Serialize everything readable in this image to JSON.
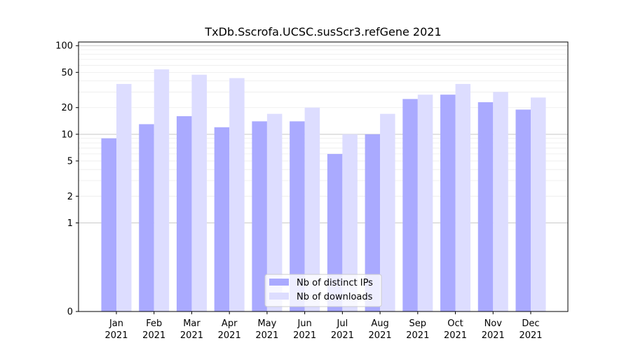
{
  "chart_data": {
    "type": "bar",
    "title": "TxDb.Sscrofa.UCSC.susScr3.refGene 2021",
    "xlabel": "",
    "ylabel": "",
    "y_scale": "symlog",
    "ylim": [
      0,
      110
    ],
    "y_ticks": [
      0,
      1,
      2,
      5,
      10,
      20,
      50,
      100
    ],
    "y_tick_labels": [
      "0",
      "1",
      "2",
      "5",
      "10",
      "20",
      "50",
      "100"
    ],
    "categories": [
      "Jan\n2021",
      "Feb\n2021",
      "Mar\n2021",
      "Apr\n2021",
      "May\n2021",
      "Jun\n2021",
      "Jul\n2021",
      "Aug\n2021",
      "Sep\n2021",
      "Oct\n2021",
      "Nov\n2021",
      "Dec\n2021"
    ],
    "category_lines": [
      [
        "Jan",
        "2021"
      ],
      [
        "Feb",
        "2021"
      ],
      [
        "Mar",
        "2021"
      ],
      [
        "Apr",
        "2021"
      ],
      [
        "May",
        "2021"
      ],
      [
        "Jun",
        "2021"
      ],
      [
        "Jul",
        "2021"
      ],
      [
        "Aug",
        "2021"
      ],
      [
        "Sep",
        "2021"
      ],
      [
        "Oct",
        "2021"
      ],
      [
        "Nov",
        "2021"
      ],
      [
        "Dec",
        "2021"
      ]
    ],
    "series": [
      {
        "name": "Nb of distinct IPs",
        "color": "#aaaaff",
        "values": [
          9,
          13,
          16,
          12,
          14,
          14,
          6,
          10,
          25,
          28,
          23,
          19
        ]
      },
      {
        "name": "Nb of downloads",
        "color": "#ddddff",
        "values": [
          37,
          54,
          47,
          43,
          17,
          20,
          10,
          17,
          28,
          37,
          30,
          26
        ]
      }
    ],
    "legend": "lower-center",
    "grid": "horizontal, major and minor"
  }
}
